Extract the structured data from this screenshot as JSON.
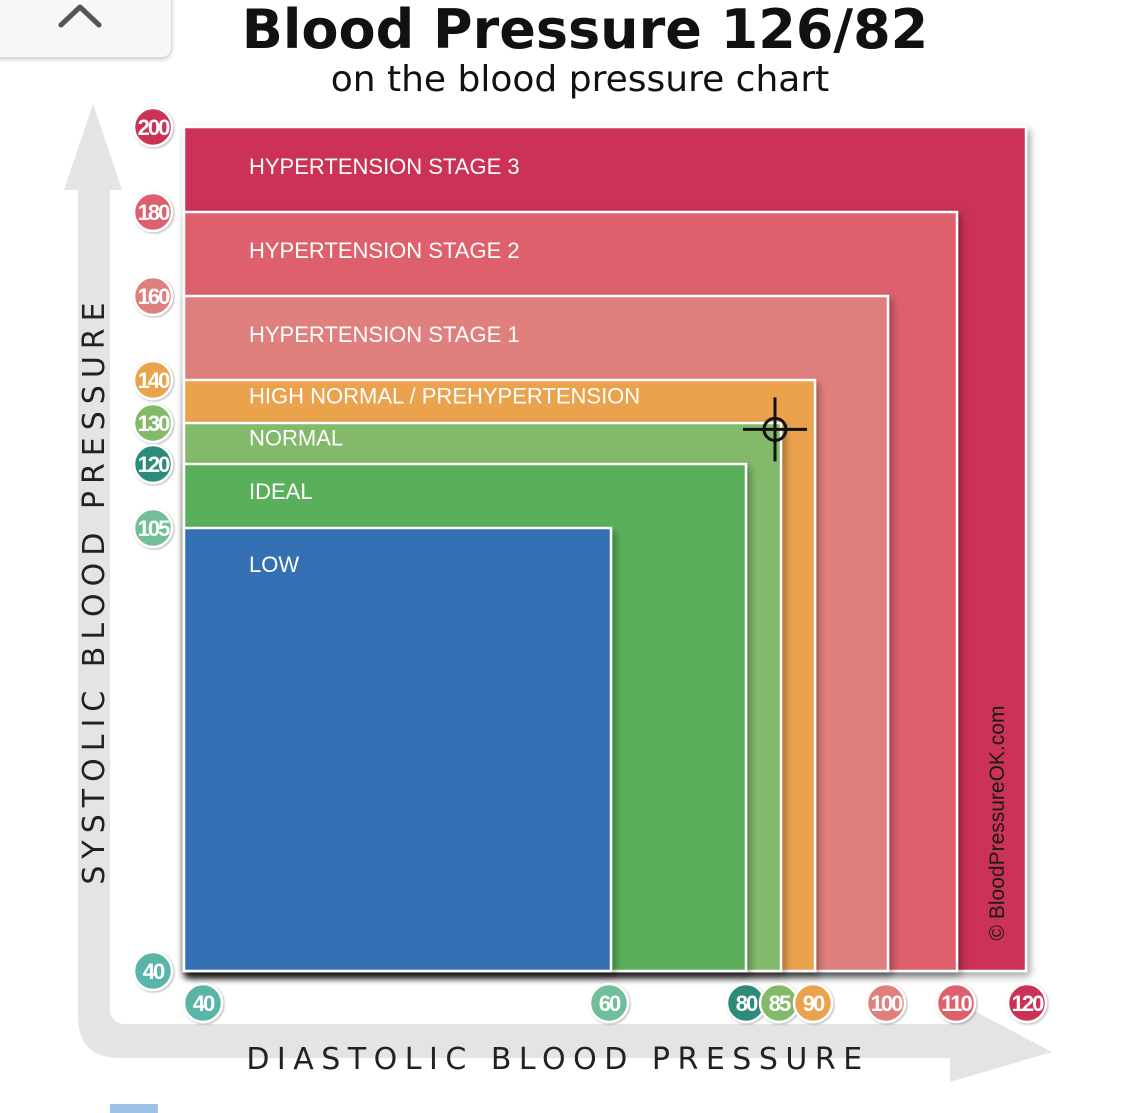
{
  "header": {
    "title": "Blood Pressure 126/82",
    "subtitle": "on the blood pressure chart",
    "collapse_icon": "chevron-up-icon"
  },
  "chart_data": {
    "type": "area",
    "title": "Blood Pressure 126/82",
    "subtitle": "on the blood pressure chart",
    "xlabel": "DIASTOLIC BLOOD PRESSURE",
    "ylabel": "SYSTOLIC BLOOD PRESSURE",
    "x_ticks": [
      40,
      60,
      80,
      85,
      90,
      100,
      110,
      120
    ],
    "y_ticks": [
      200,
      180,
      160,
      140,
      130,
      120,
      105,
      40
    ],
    "zones": [
      {
        "name": "HYPERTENSION STAGE 3",
        "systolic_max": 200,
        "diastolic_max": 120,
        "color": "#cb3055"
      },
      {
        "name": "HYPERTENSION STAGE 2",
        "systolic_max": 180,
        "diastolic_max": 110,
        "color": "#dd616c"
      },
      {
        "name": "HYPERTENSION STAGE 1",
        "systolic_max": 160,
        "diastolic_max": 100,
        "color": "#e0807e"
      },
      {
        "name": "HIGH NORMAL / PREHYPERTENSION",
        "systolic_max": 140,
        "diastolic_max": 90,
        "color": "#eaa24e"
      },
      {
        "name": "NORMAL",
        "systolic_max": 130,
        "diastolic_max": 85,
        "color": "#82b96a"
      },
      {
        "name": "IDEAL",
        "systolic_max": 120,
        "diastolic_max": 80,
        "color": "#5ab05a"
      },
      {
        "name": "LOW",
        "systolic_max": 105,
        "diastolic_max": 60,
        "color": "#3670b4"
      }
    ],
    "marker": {
      "systolic": 126,
      "diastolic": 82
    },
    "watermark": "© BloodPressureOK.com"
  }
}
